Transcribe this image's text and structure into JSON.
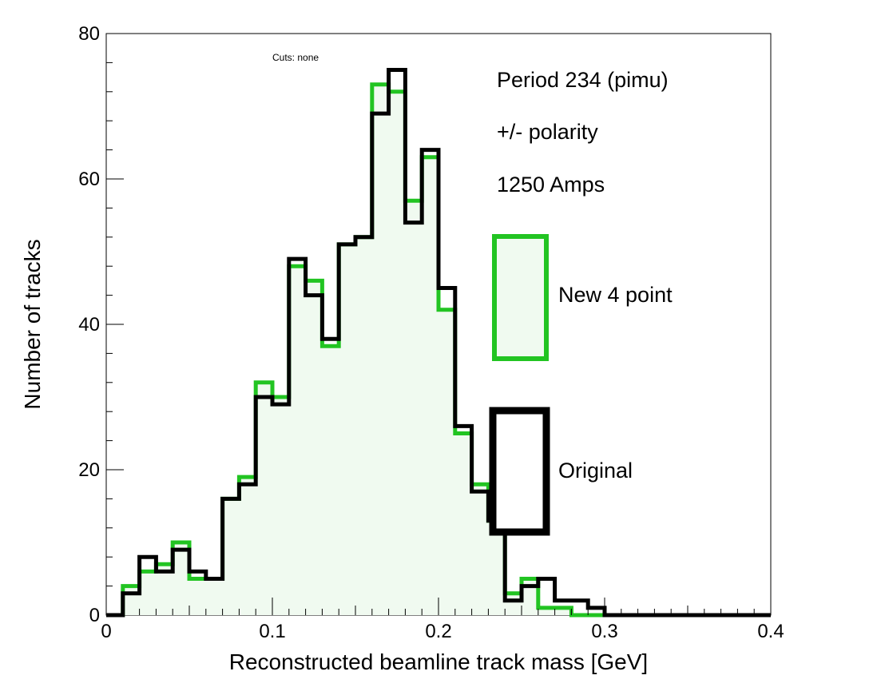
{
  "chart_data": {
    "type": "histogram",
    "xlabel": "Reconstructed beamline track mass [GeV]",
    "ylabel": "Number of tracks",
    "xlim": [
      0,
      0.4
    ],
    "ylim": [
      0,
      80
    ],
    "x_ticks": [
      "0",
      "0.1",
      "0.2",
      "0.3",
      "0.4"
    ],
    "y_ticks": [
      "0",
      "20",
      "40",
      "60",
      "80"
    ],
    "bin_edges_start": 0,
    "bin_width": 0.01,
    "grid": false,
    "series": [
      {
        "name": "New 4 point",
        "color": "#22c422",
        "fill": "#f0faf0",
        "values": [
          0,
          4,
          6,
          7,
          10,
          5,
          5,
          16,
          19,
          32,
          30,
          48,
          46,
          37,
          51,
          52,
          73,
          72,
          57,
          63,
          42,
          25,
          18,
          13,
          3,
          5,
          1,
          1,
          0,
          0,
          0,
          0,
          0,
          0,
          0,
          0,
          0,
          0,
          0,
          0
        ]
      },
      {
        "name": "Original",
        "color": "#000000",
        "values": [
          0,
          3,
          8,
          6,
          9,
          6,
          5,
          16,
          18,
          30,
          29,
          49,
          44,
          38,
          51,
          52,
          69,
          75,
          54,
          64,
          45,
          26,
          17,
          13,
          2,
          4,
          5,
          2,
          2,
          1,
          0,
          0,
          0,
          0,
          0,
          0,
          0,
          0,
          0,
          0
        ]
      }
    ],
    "annotations": {
      "cuts": "Cuts: none",
      "period": "Period 234 (pimu)",
      "polarity": "+/- polarity",
      "current": "1250 Amps"
    }
  }
}
